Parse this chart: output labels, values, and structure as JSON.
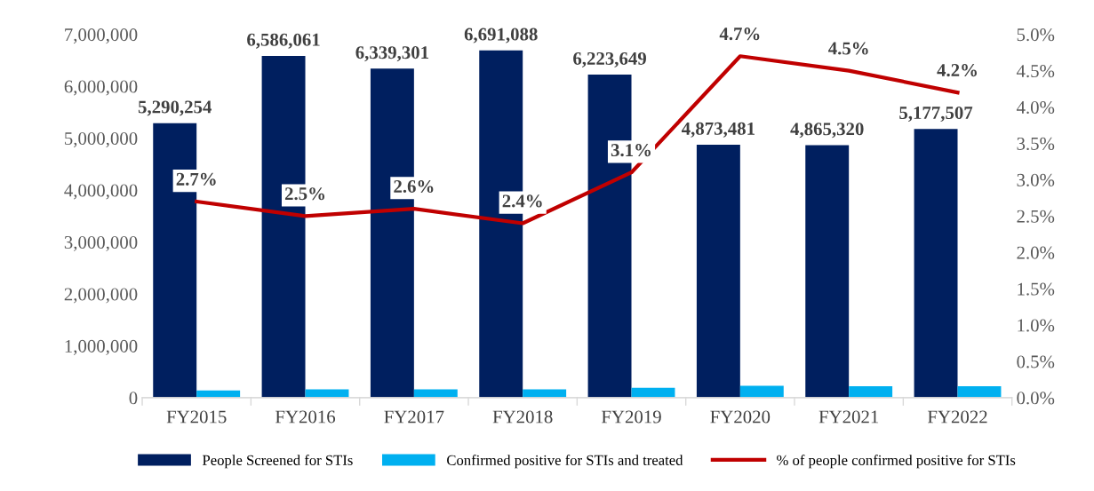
{
  "chart_data": {
    "type": "bar",
    "categories": [
      "FY2015",
      "FY2016",
      "FY2017",
      "FY2018",
      "FY2019",
      "FY2020",
      "FY2021",
      "FY2022"
    ],
    "series": [
      {
        "name": "People Screened for STIs",
        "color": "#001f5f",
        "values": [
          5290254,
          6586061,
          6339301,
          6691088,
          6223649,
          4873481,
          4865320,
          5177507
        ],
        "value_labels": [
          "5,290,254",
          "6,586,061",
          "6,339,301",
          "6,691,088",
          "6,223,649",
          "4,873,481",
          "4,865,320",
          "5,177,507"
        ]
      },
      {
        "name": "Confirmed positive for STIs and treated",
        "color": "#00b0f0",
        "values": [
          140000,
          160000,
          160000,
          160000,
          190000,
          230000,
          220000,
          220000
        ]
      },
      {
        "name": "% of people confirmed positive for STIs",
        "type": "line",
        "axis": "y2",
        "color": "#c00000",
        "values": [
          2.7,
          2.5,
          2.6,
          2.4,
          3.1,
          4.7,
          4.5,
          4.2
        ],
        "value_labels": [
          "2.7%",
          "2.5%",
          "2.6%",
          "2.4%",
          "3.1%",
          "4.7%",
          "4.5%",
          "4.2%"
        ]
      }
    ],
    "ylim": [
      0,
      7000000
    ],
    "yticks": [
      {
        "value": 0,
        "label": "0"
      },
      {
        "value": 1000000,
        "label": "1,000,000"
      },
      {
        "value": 2000000,
        "label": "2,000,000"
      },
      {
        "value": 3000000,
        "label": "3,000,000"
      },
      {
        "value": 4000000,
        "label": "4,000,000"
      },
      {
        "value": 5000000,
        "label": "5,000,000"
      },
      {
        "value": 6000000,
        "label": "6,000,000"
      },
      {
        "value": 7000000,
        "label": "7,000,000"
      }
    ],
    "y2lim": [
      0,
      5
    ],
    "y2ticks": [
      {
        "value": 0,
        "label": "0.0%"
      },
      {
        "value": 0.5,
        "label": "0.5%"
      },
      {
        "value": 1,
        "label": "1.0%"
      },
      {
        "value": 1.5,
        "label": "1.5%"
      },
      {
        "value": 2,
        "label": "2.0%"
      },
      {
        "value": 2.5,
        "label": "2.5%"
      },
      {
        "value": 3,
        "label": "3.0%"
      },
      {
        "value": 3.5,
        "label": "3.5%"
      },
      {
        "value": 4,
        "label": "4.0%"
      },
      {
        "value": 4.5,
        "label": "4.5%"
      },
      {
        "value": 5,
        "label": "5.0%"
      }
    ],
    "legend": "bottom",
    "grid": false,
    "marker": "none",
    "line_style": "solid"
  }
}
